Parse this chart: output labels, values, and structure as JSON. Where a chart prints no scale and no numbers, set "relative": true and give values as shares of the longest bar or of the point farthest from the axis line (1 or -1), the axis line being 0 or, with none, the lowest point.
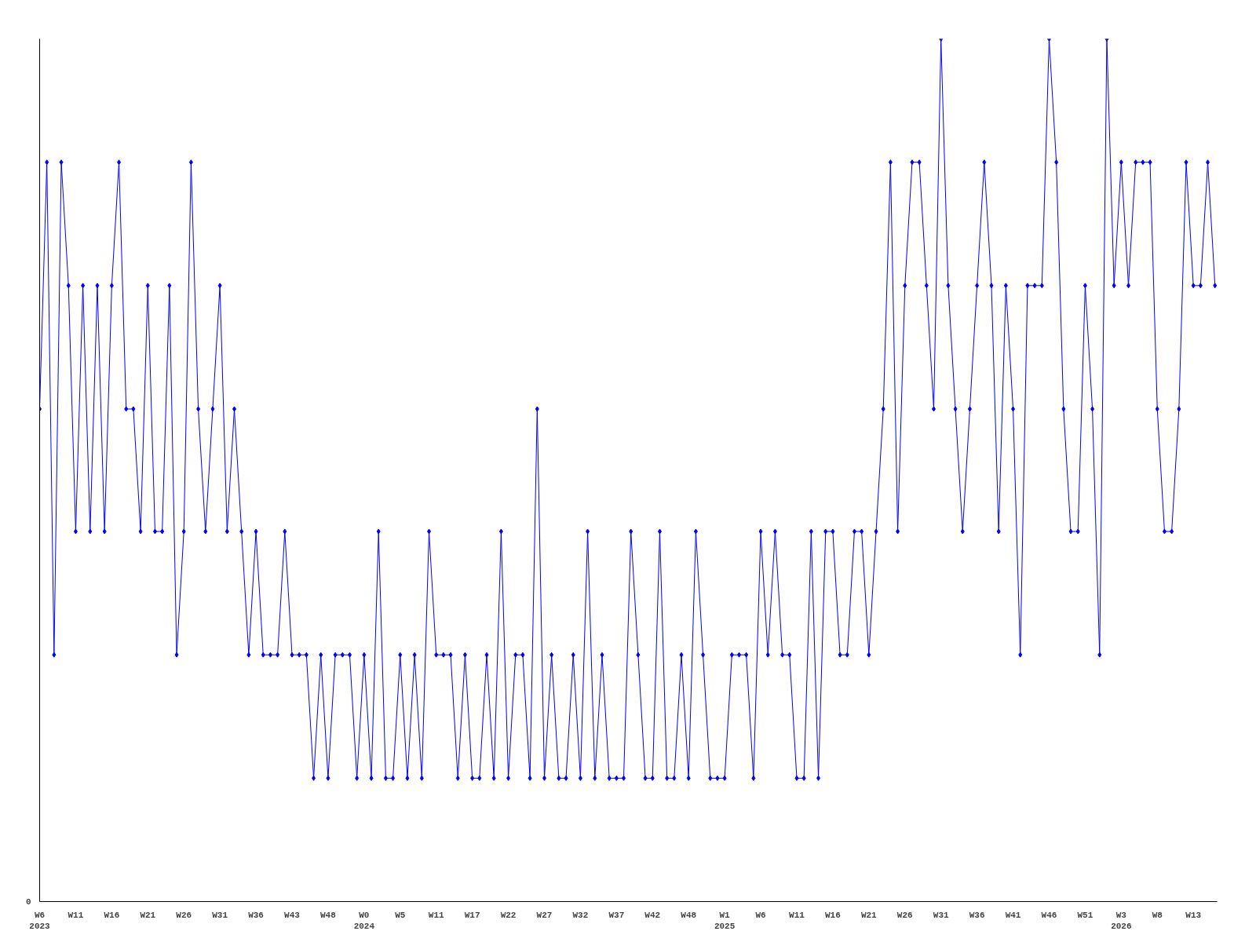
{
  "chart_data": {
    "type": "line",
    "relative": true,
    "marker": "diamond",
    "grid": false,
    "line_style": "solid",
    "annotations": [
      "0"
    ],
    "categories": [
      "W6\n2023",
      null,
      null,
      null,
      null,
      "W11",
      null,
      null,
      null,
      null,
      "W16",
      null,
      null,
      null,
      null,
      "W21",
      null,
      null,
      null,
      null,
      "W26",
      null,
      null,
      null,
      null,
      "W31",
      null,
      null,
      null,
      null,
      "W36",
      null,
      null,
      null,
      null,
      "W43",
      null,
      null,
      null,
      null,
      "W48",
      null,
      null,
      null,
      null,
      "W0\n2024",
      null,
      null,
      null,
      null,
      "W5",
      null,
      null,
      null,
      null,
      "W11",
      null,
      null,
      null,
      null,
      "W17",
      null,
      null,
      null,
      null,
      "W22",
      null,
      null,
      null,
      null,
      "W27",
      null,
      null,
      null,
      null,
      "W32",
      null,
      null,
      null,
      null,
      "W37",
      null,
      null,
      null,
      null,
      "W42",
      null,
      null,
      null,
      null,
      "W48",
      null,
      null,
      null,
      null,
      "W1\n2025",
      null,
      null,
      null,
      null,
      "W6",
      null,
      null,
      null,
      null,
      "W11",
      null,
      null,
      null,
      null,
      "W16",
      null,
      null,
      null,
      null,
      "W21",
      null,
      null,
      null,
      null,
      "W26",
      null,
      null,
      null,
      null,
      "W31",
      null,
      null,
      null,
      null,
      "W36",
      null,
      null,
      null,
      null,
      "W41",
      null,
      null,
      null,
      null,
      "W46",
      null,
      null,
      null,
      null,
      "W51",
      null,
      null,
      null,
      null,
      "W3\n2026",
      null,
      null,
      null,
      null,
      "W8",
      null,
      null,
      null,
      null,
      "W13",
      null,
      null,
      null
    ],
    "series": [
      {
        "color": "#0000ff",
        "values": [
          0.571,
          0.857,
          0.286,
          0.857,
          0.714,
          0.429,
          0.714,
          0.429,
          0.714,
          0.429,
          0.714,
          0.857,
          0.571,
          0.571,
          0.429,
          0.714,
          0.429,
          0.429,
          0.714,
          0.286,
          0.429,
          0.857,
          0.571,
          0.429,
          0.571,
          0.714,
          0.429,
          0.571,
          0.429,
          0.286,
          0.429,
          0.286,
          0.286,
          0.286,
          0.429,
          0.286,
          0.286,
          0.286,
          0.143,
          0.286,
          0.143,
          0.286,
          0.286,
          0.286,
          0.143,
          0.286,
          0.143,
          0.429,
          0.143,
          0.143,
          0.286,
          0.143,
          0.286,
          0.143,
          0.429,
          0.286,
          0.286,
          0.286,
          0.143,
          0.286,
          0.143,
          0.143,
          0.286,
          0.143,
          0.429,
          0.143,
          0.286,
          0.286,
          0.143,
          0.571,
          0.143,
          0.286,
          0.143,
          0.143,
          0.286,
          0.143,
          0.429,
          0.143,
          0.286,
          0.143,
          0.143,
          0.143,
          0.429,
          0.286,
          0.143,
          0.143,
          0.429,
          0.143,
          0.143,
          0.286,
          0.143,
          0.429,
          0.286,
          0.143,
          0.143,
          0.143,
          0.286,
          0.286,
          0.286,
          0.143,
          0.429,
          0.286,
          0.429,
          0.286,
          0.286,
          0.143,
          0.143,
          0.429,
          0.143,
          0.429,
          0.429,
          0.286,
          0.286,
          0.429,
          0.429,
          0.286,
          0.429,
          0.571,
          0.857,
          0.429,
          0.714,
          0.857,
          0.857,
          0.714,
          0.571,
          1,
          0.714,
          0.571,
          0.429,
          0.571,
          0.714,
          0.857,
          0.714,
          0.429,
          0.714,
          0.571,
          0.286,
          0.714,
          0.714,
          0.714,
          1,
          0.857,
          0.571,
          0.429,
          0.429,
          0.714,
          0.571,
          0.286,
          1,
          0.714,
          0.857,
          0.714,
          0.857,
          0.857,
          0.857,
          0.571,
          0.429,
          0.429,
          0.571,
          0.857,
          0.714,
          0.714,
          0.857,
          0.714
        ]
      }
    ]
  }
}
